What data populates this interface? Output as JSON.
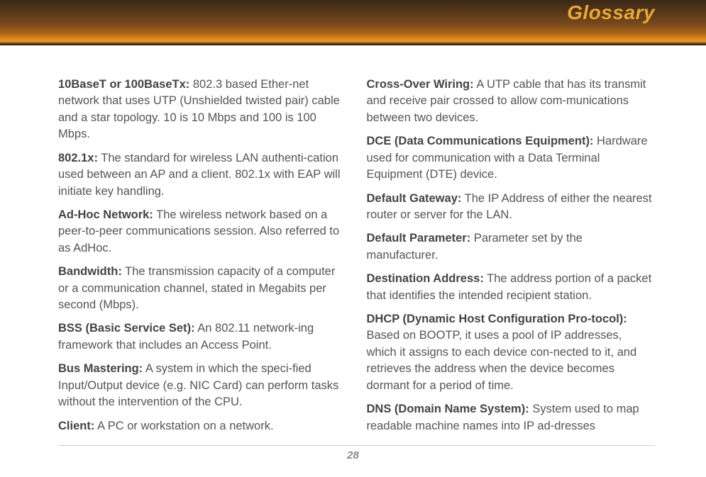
{
  "header": {
    "title": "Glossary"
  },
  "page_number": "28",
  "columns": {
    "left": [
      {
        "term": "10BaseT or 100BaseTx:",
        "def": "  802.3 based Ether-net network that uses UTP (Unshielded twisted pair) cable and a star topology.  10 is 10 Mbps and 100 is 100 Mbps."
      },
      {
        "term": "802.1x:",
        "def": " The standard for wireless LAN authenti-cation used between an AP and a client.  802.1x with EAP will initiate key handling."
      },
      {
        "term": "Ad-Hoc Network:",
        "def": " The wireless network based on a peer-to-peer communications session.  Also referred to as AdHoc."
      },
      {
        "term": "Bandwidth:",
        "def": "  The transmission capacity of a computer or a communication channel, stated in Megabits per second (Mbps)."
      },
      {
        "term": "BSS (Basic Service Set):",
        "def": "  An 802.11 network-ing framework that includes an Access Point."
      },
      {
        "term": "Bus Mastering:",
        "def": "  A system in which the speci-fied Input/Output device (e.g. NIC Card) can perform tasks without the intervention of the CPU."
      },
      {
        "term": "Client:",
        "def": " A PC or workstation on a network."
      }
    ],
    "right": [
      {
        "term": "Cross-Over Wiring:",
        "def": " A UTP cable that has its transmit and receive pair crossed to allow com-munications between two devices."
      },
      {
        "term": "DCE (Data Communications Equipment):",
        "def": " Hardware used for communication with a Data Terminal Equipment (DTE) device."
      },
      {
        "term": "Default Gateway:",
        "def": " The IP Address of either the nearest router or server for the LAN."
      },
      {
        "term": "Default Parameter:",
        "def": " Parameter set by the manufacturer."
      },
      {
        "term": "Destination Address:",
        "def": " The address portion of a packet that identifies the intended recipient station."
      },
      {
        "term": "DHCP (Dynamic Host Configuration Pro-tocol):",
        "def": " Based on BOOTP, it uses a pool of IP addresses, which it assigns to each device con-nected to it, and retrieves the address when the device becomes dormant for a period of time."
      },
      {
        "term": "DNS (Domain Name System):",
        "def": "  System used to map readable machine names into IP ad-dresses"
      }
    ]
  }
}
